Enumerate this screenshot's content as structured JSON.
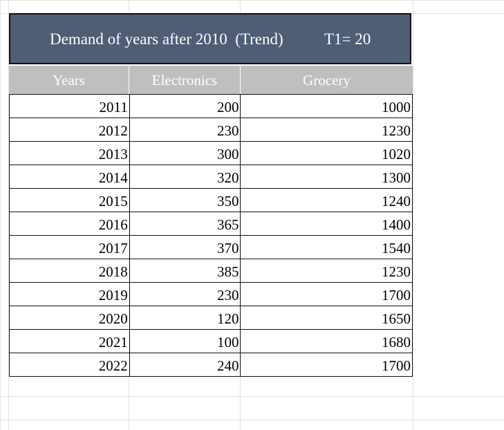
{
  "title": {
    "text": "Demand of years after 2010  (Trend)",
    "t1": "T1= 20"
  },
  "headers": [
    "Years",
    "Electronics",
    "Grocery"
  ],
  "rows": [
    [
      "2011",
      "200",
      "1000"
    ],
    [
      "2012",
      "230",
      "1230"
    ],
    [
      "2013",
      "300",
      "1020"
    ],
    [
      "2014",
      "320",
      "1300"
    ],
    [
      "2015",
      "350",
      "1240"
    ],
    [
      "2016",
      "365",
      "1400"
    ],
    [
      "2017",
      "370",
      "1540"
    ],
    [
      "2018",
      "385",
      "1230"
    ],
    [
      "2019",
      "230",
      "1700"
    ],
    [
      "2020",
      "120",
      "1650"
    ],
    [
      "2021",
      "100",
      "1680"
    ],
    [
      "2022",
      "240",
      "1700"
    ]
  ],
  "colors": {
    "title_bg": "#4f5d75",
    "header_bg": "#bfbfbf",
    "header_text": "#ffffff",
    "gridline": "#e1e1e1"
  }
}
